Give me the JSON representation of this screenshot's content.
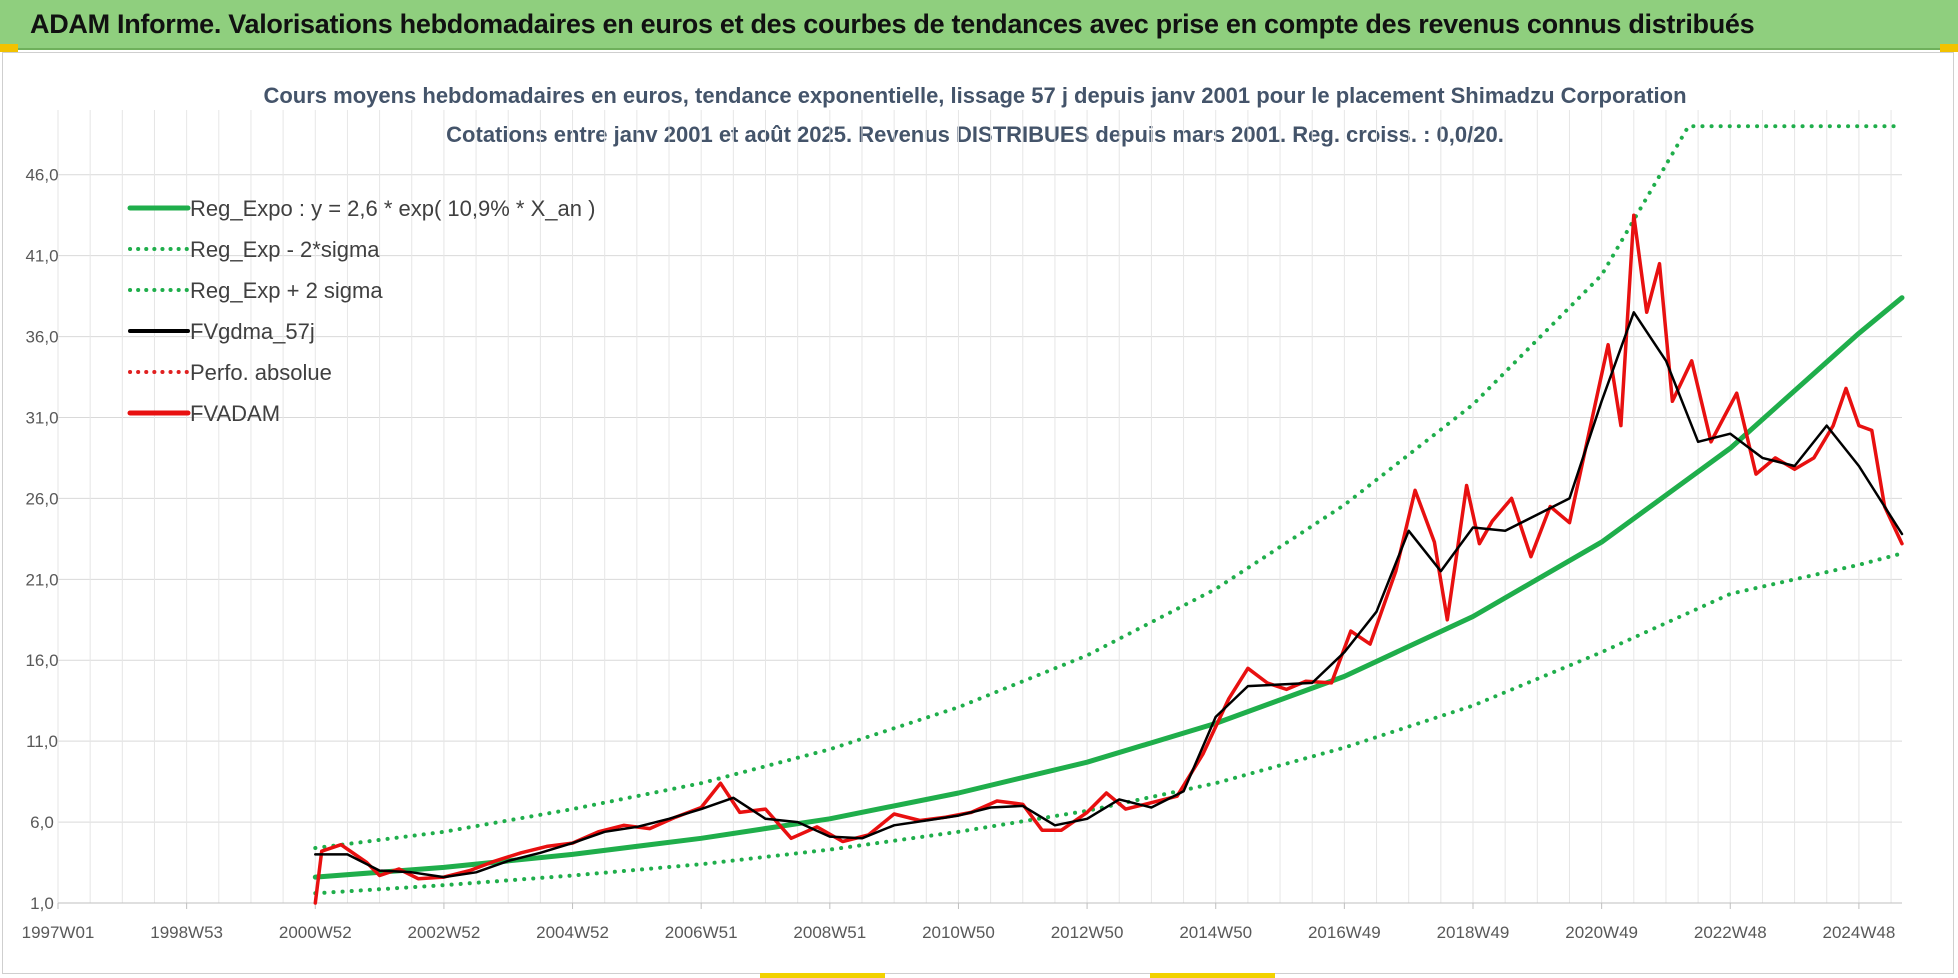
{
  "banner": {
    "title": "ADAM Informe. Valorisations hebdomadaires en euros et des courbes de tendances avec prise en compte des revenus connus distribués",
    "color": "#8fcf7e"
  },
  "chart_data": {
    "type": "line",
    "title_line1": "Cours moyens hebdomadaires en euros, tendance exponentielle, lissage 57 j depuis janv 2001 pour le placement Shimadzu Corporation",
    "title_line2": "Cotations entre janv 2001 et août 2025. Revenus DISTRIBUES depuis mars 2001. Reg. croiss. : 0,0/20.",
    "xlabel": "",
    "ylabel": "",
    "ylim": [
      1,
      50
    ],
    "xlim": [
      1997.0,
      2025.67
    ],
    "y_ticks": [
      "1,0",
      "6,0",
      "11,0",
      "16,0",
      "21,0",
      "26,0",
      "31,0",
      "36,0",
      "41,0",
      "46,0"
    ],
    "y_tick_values": [
      1,
      6,
      11,
      16,
      21,
      26,
      31,
      36,
      41,
      46
    ],
    "x_ticks": [
      "1997W01",
      "1998W53",
      "2000W52",
      "2002W52",
      "2004W52",
      "2006W51",
      "2008W51",
      "2010W50",
      "2012W50",
      "2014W50",
      "2016W49",
      "2018W49",
      "2020W49",
      "2022W48",
      "2024W48"
    ],
    "x_tick_values": [
      1997.0,
      1999.0,
      2001.0,
      2003.0,
      2005.0,
      2007.0,
      2009.0,
      2011.0,
      2013.0,
      2015.0,
      2017.0,
      2019.0,
      2021.0,
      2023.0,
      2025.0
    ],
    "grid": true,
    "legend_position": "top-left",
    "series": [
      {
        "name": "Reg_Expo : y = 2,6 * exp( 10,9% *  X_an )",
        "color": "#1fae4b",
        "style": "solid",
        "x": [
          2001.0,
          2003.0,
          2005.0,
          2007.0,
          2009.0,
          2011.0,
          2013.0,
          2015.0,
          2017.0,
          2019.0,
          2021.0,
          2023.0,
          2025.0,
          2025.67
        ],
        "values": [
          2.6,
          3.2,
          4.0,
          5.0,
          6.2,
          7.8,
          9.7,
          12.1,
          15.0,
          18.7,
          23.3,
          29.1,
          36.2,
          38.4
        ]
      },
      {
        "name": "Reg_Exp - 2*sigma",
        "color": "#1fae4b",
        "style": "dotted",
        "x": [
          2001.0,
          2003.0,
          2005.0,
          2007.0,
          2009.0,
          2011.0,
          2013.0,
          2015.0,
          2017.0,
          2019.0,
          2021.0,
          2023.0,
          2025.0,
          2025.67
        ],
        "values": [
          1.6,
          2.1,
          2.7,
          3.4,
          4.3,
          5.4,
          6.7,
          8.4,
          10.6,
          13.2,
          16.5,
          20.1,
          21.9,
          22.6
        ]
      },
      {
        "name": "Reg_Exp + 2 sigma",
        "color": "#1fae4b",
        "style": "dotted",
        "x": [
          2001.0,
          2003.0,
          2005.0,
          2007.0,
          2009.0,
          2011.0,
          2013.0,
          2015.0,
          2017.0,
          2019.0,
          2021.0,
          2022.35,
          2023.0,
          2025.67
        ],
        "values": [
          4.4,
          5.4,
          6.8,
          8.4,
          10.5,
          13.1,
          16.3,
          20.4,
          25.6,
          31.8,
          39.8,
          49.0,
          49.0,
          49.0
        ]
      },
      {
        "name": "FVgdma_57j",
        "color": "#000000",
        "style": "solid",
        "x": [
          2001.0,
          2001.5,
          2002.0,
          2002.5,
          2003.0,
          2003.5,
          2004.0,
          2004.5,
          2005.0,
          2005.5,
          2006.0,
          2006.5,
          2007.0,
          2007.5,
          2008.0,
          2008.5,
          2009.0,
          2009.5,
          2010.0,
          2010.5,
          2011.0,
          2011.5,
          2012.0,
          2012.5,
          2013.0,
          2013.5,
          2014.0,
          2014.5,
          2015.0,
          2015.5,
          2016.0,
          2016.5,
          2017.0,
          2017.5,
          2018.0,
          2018.5,
          2019.0,
          2019.5,
          2020.0,
          2020.5,
          2021.0,
          2021.5,
          2022.0,
          2022.5,
          2023.0,
          2023.5,
          2024.0,
          2024.5,
          2025.0,
          2025.67
        ],
        "values": [
          4.0,
          4.0,
          3.0,
          2.9,
          2.6,
          2.9,
          3.6,
          4.1,
          4.7,
          5.4,
          5.7,
          6.2,
          6.8,
          7.5,
          6.2,
          6.0,
          5.1,
          5.0,
          5.8,
          6.1,
          6.4,
          6.9,
          7.0,
          5.8,
          6.2,
          7.4,
          6.9,
          7.9,
          12.5,
          14.4,
          14.5,
          14.6,
          16.5,
          19.0,
          24.0,
          21.5,
          24.2,
          24.0,
          25.0,
          26.0,
          32.0,
          37.5,
          34.5,
          29.5,
          30.0,
          28.5,
          28.0,
          30.5,
          28.0,
          23.8
        ]
      },
      {
        "name": "Perfo. absolue",
        "color": "#e02020",
        "style": "dotted",
        "x": [],
        "values": []
      },
      {
        "name": "FVADAM",
        "color": "#e81010",
        "style": "solid",
        "x": [
          2001.0,
          2001.1,
          2001.4,
          2001.8,
          2002.0,
          2002.3,
          2002.6,
          2003.0,
          2003.4,
          2003.8,
          2004.2,
          2004.6,
          2005.0,
          2005.4,
          2005.8,
          2006.2,
          2006.6,
          2007.0,
          2007.3,
          2007.6,
          2008.0,
          2008.4,
          2008.8,
          2009.2,
          2009.6,
          2010.0,
          2010.4,
          2010.8,
          2011.2,
          2011.6,
          2012.0,
          2012.3,
          2012.6,
          2013.0,
          2013.3,
          2013.6,
          2014.0,
          2014.4,
          2014.8,
          2015.2,
          2015.5,
          2015.8,
          2016.1,
          2016.4,
          2016.8,
          2017.1,
          2017.4,
          2017.8,
          2018.1,
          2018.4,
          2018.6,
          2018.9,
          2019.1,
          2019.3,
          2019.6,
          2019.9,
          2020.2,
          2020.5,
          2020.8,
          2021.1,
          2021.3,
          2021.5,
          2021.7,
          2021.9,
          2022.1,
          2022.4,
          2022.7,
          2022.9,
          2023.1,
          2023.4,
          2023.7,
          2024.0,
          2024.3,
          2024.6,
          2024.8,
          2025.0,
          2025.2,
          2025.4,
          2025.67
        ],
        "values": [
          1.0,
          4.2,
          4.6,
          3.5,
          2.7,
          3.1,
          2.5,
          2.6,
          3.0,
          3.6,
          4.1,
          4.5,
          4.7,
          5.4,
          5.8,
          5.6,
          6.3,
          6.9,
          8.4,
          6.6,
          6.8,
          5.0,
          5.7,
          4.8,
          5.2,
          6.5,
          6.1,
          6.3,
          6.6,
          7.3,
          7.1,
          5.5,
          5.5,
          6.6,
          7.8,
          6.8,
          7.2,
          7.6,
          10.2,
          13.6,
          15.5,
          14.6,
          14.2,
          14.7,
          14.6,
          17.8,
          17.0,
          21.5,
          26.5,
          23.3,
          18.5,
          26.8,
          23.2,
          24.6,
          26.0,
          22.4,
          25.5,
          24.5,
          30.0,
          35.5,
          30.5,
          43.5,
          37.5,
          40.5,
          32.0,
          34.5,
          29.5,
          31.0,
          32.5,
          27.5,
          28.5,
          27.8,
          28.5,
          30.5,
          32.8,
          30.5,
          30.2,
          25.5,
          23.2
        ]
      }
    ]
  }
}
